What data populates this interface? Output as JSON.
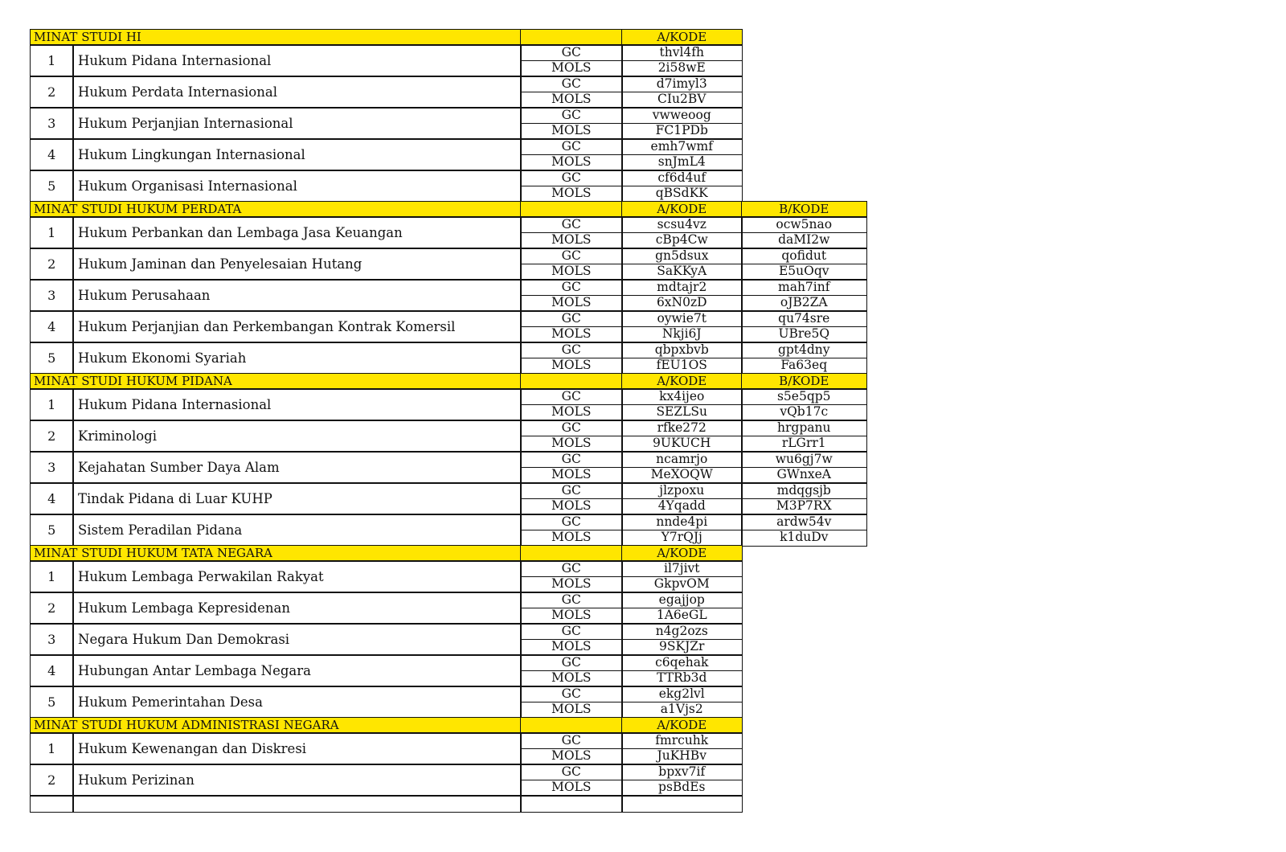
{
  "type_labels": {
    "gc": "GC",
    "mols": "MOLS"
  },
  "colors": {
    "header_fill": "#ffe600",
    "border": "#111111"
  },
  "sections": [
    {
      "title": "MINAT STUDI HI",
      "col_a": "A/KODE",
      "col_b": null,
      "items": [
        {
          "no": "1",
          "name": "Hukum Pidana Internasional",
          "gc_a": "thvl4fh",
          "mols_a": "2i58wE"
        },
        {
          "no": "2",
          "name": "Hukum Perdata Internasional",
          "gc_a": "d7imyl3",
          "mols_a": "CIu2BV"
        },
        {
          "no": "3",
          "name": "Hukum Perjanjian Internasional",
          "gc_a": "vwweoog",
          "mols_a": "FC1PDb"
        },
        {
          "no": "4",
          "name": "Hukum Lingkungan Internasional",
          "gc_a": "emh7wmf",
          "mols_a": "snJmL4"
        },
        {
          "no": "5",
          "name": "Hukum Organisasi Internasional",
          "gc_a": "cf6d4uf",
          "mols_a": "qBSdKK"
        }
      ]
    },
    {
      "title": "MINAT STUDI HUKUM PERDATA",
      "col_a": "A/KODE",
      "col_b": "B/KODE",
      "items": [
        {
          "no": "1",
          "name": "Hukum Perbankan dan Lembaga Jasa Keuangan",
          "gc_a": "scsu4vz",
          "mols_a": "cBp4Cw",
          "gc_b": "ocw5nao",
          "mols_b": "daMI2w"
        },
        {
          "no": "2",
          "name": "Hukum Jaminan dan Penyelesaian Hutang",
          "gc_a": "gn5dsux",
          "mols_a": "SaKKyA",
          "gc_b": "qofidut",
          "mols_b": "E5uOqv"
        },
        {
          "no": "3",
          "name": "Hukum Perusahaan",
          "gc_a": "mdtajr2",
          "mols_a": "6xN0zD",
          "gc_b": "mah7inf",
          "mols_b": "oJB2ZA"
        },
        {
          "no": "4",
          "name": "Hukum Perjanjian dan Perkembangan Kontrak Komersil",
          "gc_a": "oywie7t",
          "mols_a": "Nkji6J",
          "gc_b": "qu74sre",
          "mols_b": "UBre5Q"
        },
        {
          "no": "5",
          "name": "Hukum Ekonomi Syariah",
          "gc_a": "qbpxbvb",
          "mols_a": "fEU1OS",
          "gc_b": "gpt4dny",
          "mols_b": "Fa63eq"
        }
      ]
    },
    {
      "title": "MINAT STUDI HUKUM PIDANA",
      "col_a": "A/KODE",
      "col_b": "B/KODE",
      "items": [
        {
          "no": "1",
          "name": "Hukum Pidana Internasional",
          "gc_a": "kx4ijeo",
          "mols_a": "SEZLSu",
          "gc_b": "s5e5qp5",
          "mols_b": "vQb17c"
        },
        {
          "no": "2",
          "name": "Kriminologi",
          "gc_a": "rfke272",
          "mols_a": "9UKUCH",
          "gc_b": "hrgpanu",
          "mols_b": "rLGrr1"
        },
        {
          "no": "3",
          "name": "Kejahatan Sumber Daya Alam",
          "gc_a": "ncamrjo",
          "mols_a": "MeXOQW",
          "gc_b": "wu6gj7w",
          "mols_b": "GWnxeA"
        },
        {
          "no": "4",
          "name": "Tindak Pidana di Luar KUHP",
          "gc_a": "jlzpoxu",
          "mols_a": "4Yqadd",
          "gc_b": "mdqgsjb",
          "mols_b": "M3P7RX"
        },
        {
          "no": "5",
          "name": "Sistem Peradilan Pidana",
          "gc_a": "nnde4pi",
          "mols_a": "Y7rQJj",
          "gc_b": "ardw54v",
          "mols_b": "k1duDv"
        }
      ]
    },
    {
      "title": "MINAT STUDI HUKUM TATA NEGARA",
      "col_a": "A/KODE",
      "col_b": null,
      "items": [
        {
          "no": "1",
          "name": "Hukum Lembaga Perwakilan Rakyat",
          "gc_a": "il7jivt",
          "mols_a": "GkpvOM"
        },
        {
          "no": "2",
          "name": "Hukum Lembaga Kepresidenan",
          "gc_a": "egajjop",
          "mols_a": "1A6eGL"
        },
        {
          "no": "3",
          "name": "Negara Hukum Dan Demokrasi",
          "gc_a": "n4g2ozs",
          "mols_a": "9SKJZr"
        },
        {
          "no": "4",
          "name": "Hubungan Antar Lembaga Negara",
          "gc_a": "c6qehak",
          "mols_a": "TTRb3d"
        },
        {
          "no": "5",
          "name": "Hukum Pemerintahan Desa",
          "gc_a": "ekg2lvl",
          "mols_a": "a1Vjs2"
        }
      ]
    },
    {
      "title": "MINAT STUDI HUKUM ADMINISTRASI NEGARA",
      "col_a": "A/KODE",
      "col_b": null,
      "items": [
        {
          "no": "1",
          "name": "Hukum Kewenangan dan Diskresi",
          "gc_a": "fmrcuhk",
          "mols_a": "JuKHBv"
        },
        {
          "no": "2",
          "name": "Hukum Perizinan",
          "gc_a": "bpxv7if",
          "mols_a": "psBdEs"
        }
      ]
    }
  ]
}
